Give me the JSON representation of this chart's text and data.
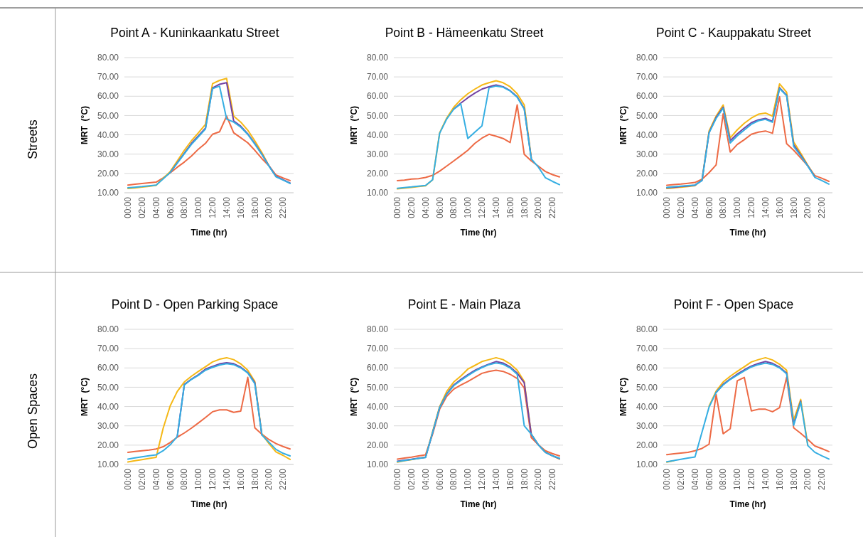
{
  "chart_data": [
    {
      "type": "line",
      "title": "Point A - Kuninkaankatu Street",
      "xlabel": "Time (hr)",
      "ylabel": "MRT  (°C)",
      "annotations": [
        "Streets"
      ],
      "x": [
        0,
        1,
        2,
        3,
        4,
        5,
        6,
        7,
        8,
        9,
        10,
        11,
        12,
        13,
        14,
        15,
        16,
        17,
        18,
        19,
        20,
        21,
        22,
        23
      ],
      "xlim": [
        -0.5,
        23.5
      ],
      "xticks": [
        {
          "value": 0,
          "label": "00:00"
        },
        {
          "value": 2,
          "label": "02:00"
        },
        {
          "value": 4,
          "label": "04:00"
        },
        {
          "value": 6,
          "label": "06:00"
        },
        {
          "value": 8,
          "label": "08:00"
        },
        {
          "value": 10,
          "label": "10:00"
        },
        {
          "value": 12,
          "label": "12:00"
        },
        {
          "value": 14,
          "label": "14:00"
        },
        {
          "value": 16,
          "label": "16:00"
        },
        {
          "value": 18,
          "label": "18:00"
        },
        {
          "value": 20,
          "label": "20:00"
        },
        {
          "value": 22,
          "label": "22:00"
        }
      ],
      "ylim": [
        10,
        80
      ],
      "yticks": [
        {
          "value": 10,
          "label": "10.00"
        },
        {
          "value": 20,
          "label": "20.00"
        },
        {
          "value": 30,
          "label": "30.00"
        },
        {
          "value": 40,
          "label": "40.00"
        },
        {
          "value": 50,
          "label": "50.00"
        },
        {
          "value": 60,
          "label": "60.00"
        },
        {
          "value": 70,
          "label": "70.00"
        },
        {
          "value": 80,
          "label": "80.00"
        }
      ],
      "grid": "y",
      "legend": false,
      "series": [
        {
          "color": "#ed6a45",
          "values": [
            14.0,
            14.4,
            14.8,
            15.2,
            15.5,
            17.7,
            20.3,
            23.2,
            25.9,
            29.0,
            32.6,
            35.6,
            40.3,
            41.6,
            49.7,
            41.1,
            38.5,
            35.9,
            32.0,
            27.7,
            24.0,
            19.2,
            17.7,
            16.3
          ]
        },
        {
          "color": "#f5b816",
          "values": [
            12.2,
            12.5,
            12.9,
            13.3,
            13.9,
            17.5,
            21.0,
            26.5,
            32.0,
            36.9,
            41.1,
            45.4,
            66.5,
            68.2,
            69.2,
            49.7,
            46.6,
            42.4,
            36.9,
            30.8,
            24.0,
            18.5,
            null,
            null
          ]
        },
        {
          "color": "#7342a3",
          "values": [
            null,
            null,
            null,
            null,
            null,
            null,
            20.5,
            25.5,
            30.5,
            35.5,
            39.5,
            43.5,
            64.3,
            66.2,
            67.0,
            47.2,
            44.5,
            40.5,
            35.5,
            30.0,
            24.0,
            18.5,
            16.8,
            15.0
          ]
        },
        {
          "color": "#35aee2",
          "values": [
            12.6,
            12.9,
            13.2,
            13.6,
            14.0,
            17.2,
            20.5,
            25.3,
            30.2,
            35.0,
            39.0,
            43.0,
            64.0,
            65.2,
            48.2,
            46.6,
            44.0,
            40.2,
            35.2,
            29.8,
            23.8,
            18.3,
            16.6,
            14.8
          ]
        }
      ]
    },
    {
      "type": "line",
      "title": "Point B - Hämeenkatu Street",
      "xlabel": "Time (hr)",
      "ylabel": "MRT  (°C)",
      "x": [
        0,
        1,
        2,
        3,
        4,
        5,
        6,
        7,
        8,
        9,
        10,
        11,
        12,
        13,
        14,
        15,
        16,
        17,
        18,
        19,
        20,
        21,
        22,
        23
      ],
      "xlim": [
        -0.5,
        23.5
      ],
      "xticks": [
        {
          "value": 0,
          "label": "00:00"
        },
        {
          "value": 2,
          "label": "02:00"
        },
        {
          "value": 4,
          "label": "04:00"
        },
        {
          "value": 6,
          "label": "06:00"
        },
        {
          "value": 8,
          "label": "08:00"
        },
        {
          "value": 10,
          "label": "10:00"
        },
        {
          "value": 12,
          "label": "12:00"
        },
        {
          "value": 14,
          "label": "14:00"
        },
        {
          "value": 16,
          "label": "16:00"
        },
        {
          "value": 18,
          "label": "18:00"
        },
        {
          "value": 20,
          "label": "20:00"
        },
        {
          "value": 22,
          "label": "22:00"
        }
      ],
      "ylim": [
        10,
        80
      ],
      "yticks": [
        {
          "value": 10,
          "label": "10.00"
        },
        {
          "value": 20,
          "label": "20.00"
        },
        {
          "value": 30,
          "label": "30.00"
        },
        {
          "value": 40,
          "label": "40.00"
        },
        {
          "value": 50,
          "label": "50.00"
        },
        {
          "value": 60,
          "label": "60.00"
        },
        {
          "value": 70,
          "label": "70.00"
        },
        {
          "value": 80,
          "label": "80.00"
        }
      ],
      "grid": "y",
      "legend": false,
      "series": [
        {
          "color": "#ed6a45",
          "values": [
            16.3,
            16.5,
            17.1,
            17.3,
            17.9,
            19.0,
            21.2,
            23.8,
            26.5,
            29.2,
            32.0,
            35.6,
            38.3,
            40.3,
            39.3,
            38.1,
            36.0,
            55.5,
            29.9,
            26.5,
            23.8,
            21.0,
            19.4,
            18.2
          ]
        },
        {
          "color": "#f5b816",
          "values": [
            12.0,
            12.4,
            12.8,
            13.2,
            13.6,
            16.7,
            41.1,
            48.7,
            54.3,
            58.2,
            61.3,
            63.7,
            65.8,
            67.0,
            68.0,
            67.0,
            64.9,
            61.3,
            55.5,
            28.3,
            null,
            null,
            null,
            null
          ]
        },
        {
          "color": "#7342a3",
          "values": [
            null,
            null,
            null,
            null,
            null,
            null,
            null,
            null,
            53.3,
            56.4,
            59.2,
            61.6,
            63.7,
            64.9,
            65.8,
            64.9,
            62.9,
            59.7,
            53.6,
            27.7,
            null,
            null,
            null,
            null
          ]
        },
        {
          "color": "#35aee2",
          "values": [
            12.3,
            12.7,
            13.0,
            13.4,
            13.8,
            16.7,
            40.8,
            48.2,
            53.3,
            56.0,
            38.1,
            41.4,
            44.6,
            64.3,
            65.3,
            64.7,
            62.7,
            59.5,
            53.3,
            27.5,
            23.3,
            17.8,
            15.9,
            14.2
          ]
        }
      ]
    },
    {
      "type": "line",
      "title": "Point C -  Kauppakatu Street",
      "xlabel": "Time (hr)",
      "ylabel": "MRT  (°C)",
      "x": [
        0,
        1,
        2,
        3,
        4,
        5,
        6,
        7,
        8,
        9,
        10,
        11,
        12,
        13,
        14,
        15,
        16,
        17,
        18,
        19,
        20,
        21,
        22,
        23
      ],
      "xlim": [
        -0.5,
        23.5
      ],
      "xticks": [
        {
          "value": 0,
          "label": "00:00"
        },
        {
          "value": 2,
          "label": "02:00"
        },
        {
          "value": 4,
          "label": "04:00"
        },
        {
          "value": 6,
          "label": "06:00"
        },
        {
          "value": 8,
          "label": "08:00"
        },
        {
          "value": 10,
          "label": "10:00"
        },
        {
          "value": 12,
          "label": "12:00"
        },
        {
          "value": 14,
          "label": "14:00"
        },
        {
          "value": 16,
          "label": "16:00"
        },
        {
          "value": 18,
          "label": "18:00"
        },
        {
          "value": 20,
          "label": "20:00"
        },
        {
          "value": 22,
          "label": "22:00"
        }
      ],
      "ylim": [
        10,
        80
      ],
      "yticks": [
        {
          "value": 10,
          "label": "10.00"
        },
        {
          "value": 20,
          "label": "20.00"
        },
        {
          "value": 30,
          "label": "30.00"
        },
        {
          "value": 40,
          "label": "40.00"
        },
        {
          "value": 50,
          "label": "50.00"
        },
        {
          "value": 60,
          "label": "60.00"
        },
        {
          "value": 70,
          "label": "70.00"
        },
        {
          "value": 80,
          "label": "80.00"
        }
      ],
      "grid": "y",
      "legend": false,
      "series": [
        {
          "color": "#ed6a45",
          "values": [
            13.9,
            14.2,
            14.5,
            14.9,
            15.3,
            17.0,
            20.4,
            24.4,
            50.9,
            31.1,
            35.0,
            37.5,
            40.3,
            41.4,
            42.0,
            40.8,
            59.7,
            35.4,
            32.0,
            28.0,
            24.0,
            18.9,
            17.5,
            15.9
          ]
        },
        {
          "color": "#f5b816",
          "values": [
            12.2,
            12.5,
            12.9,
            13.2,
            13.7,
            16.7,
            42.0,
            49.7,
            55.5,
            38.4,
            42.6,
            46.0,
            48.7,
            50.7,
            51.3,
            49.7,
            66.4,
            62.1,
            36.3,
            30.5,
            24.3,
            18.5,
            null,
            null
          ]
        },
        {
          "color": "#7342a3",
          "values": [
            12.6,
            12.9,
            13.2,
            13.5,
            13.9,
            16.5,
            41.2,
            49.0,
            54.3,
            37.0,
            40.5,
            43.5,
            46.3,
            47.8,
            48.5,
            47.0,
            64.4,
            60.5,
            34.8,
            29.5,
            24.0,
            18.3,
            null,
            null
          ]
        },
        {
          "color": "#35aee2",
          "values": [
            12.8,
            13.1,
            13.4,
            13.7,
            14.0,
            16.3,
            41.0,
            48.5,
            53.8,
            35.8,
            39.5,
            42.5,
            45.5,
            47.3,
            48.0,
            46.5,
            64.0,
            60.3,
            34.0,
            29.0,
            23.8,
            18.0,
            16.3,
            14.5
          ]
        }
      ]
    },
    {
      "type": "line",
      "title": "Point D - Open Parking Space",
      "xlabel": "Time (hr)",
      "ylabel": "MRT  (°C)",
      "annotations": [
        "Open Spaces"
      ],
      "x": [
        0,
        1,
        2,
        3,
        4,
        5,
        6,
        7,
        8,
        9,
        10,
        11,
        12,
        13,
        14,
        15,
        16,
        17,
        18,
        19,
        20,
        21,
        22,
        23
      ],
      "xlim": [
        -0.5,
        23.5
      ],
      "xticks": [
        {
          "value": 0,
          "label": "00:00"
        },
        {
          "value": 2,
          "label": "02:00"
        },
        {
          "value": 4,
          "label": "04:00"
        },
        {
          "value": 6,
          "label": "06:00"
        },
        {
          "value": 8,
          "label": "08:00"
        },
        {
          "value": 10,
          "label": "10:00"
        },
        {
          "value": 12,
          "label": "12:00"
        },
        {
          "value": 14,
          "label": "14:00"
        },
        {
          "value": 16,
          "label": "16:00"
        },
        {
          "value": 18,
          "label": "18:00"
        },
        {
          "value": 20,
          "label": "20:00"
        },
        {
          "value": 22,
          "label": "22:00"
        }
      ],
      "ylim": [
        10,
        80
      ],
      "yticks": [
        {
          "value": 10,
          "label": "10.00"
        },
        {
          "value": 20,
          "label": "20.00"
        },
        {
          "value": 30,
          "label": "30.00"
        },
        {
          "value": 40,
          "label": "40.00"
        },
        {
          "value": 50,
          "label": "50.00"
        },
        {
          "value": 60,
          "label": "60.00"
        },
        {
          "value": 70,
          "label": "70.00"
        },
        {
          "value": 80,
          "label": "80.00"
        }
      ],
      "grid": "y",
      "legend": false,
      "series": [
        {
          "color": "#ed6a45",
          "values": [
            16.3,
            16.7,
            17.1,
            17.5,
            18.0,
            19.2,
            21.4,
            24.1,
            26.3,
            28.8,
            31.5,
            34.3,
            37.3,
            38.3,
            38.3,
            37.0,
            37.6,
            55.1,
            29.0,
            25.7,
            22.9,
            20.8,
            19.3,
            18.0
          ]
        },
        {
          "color": "#f5b816",
          "values": [
            11.3,
            11.9,
            12.5,
            13.1,
            13.7,
            28.8,
            40.4,
            47.8,
            52.7,
            55.7,
            58.2,
            60.6,
            63.1,
            64.5,
            65.3,
            64.3,
            62.1,
            58.8,
            53.0,
            25.7,
            20.8,
            16.5,
            14.7,
            12.6
          ]
        },
        {
          "color": "#7342a3",
          "values": [
            null,
            null,
            null,
            null,
            null,
            null,
            null,
            24.5,
            51.4,
            54.2,
            56.5,
            59.4,
            60.8,
            62.1,
            62.7,
            62.2,
            60.4,
            57.6,
            52.3,
            25.3,
            null,
            null,
            null,
            null
          ]
        },
        {
          "color": "#35aee2",
          "values": [
            12.8,
            13.4,
            14.0,
            14.5,
            15.0,
            17.1,
            20.2,
            24.5,
            51.2,
            54.0,
            56.2,
            58.8,
            60.3,
            61.5,
            62.2,
            61.7,
            60.0,
            57.4,
            51.8,
            25.3,
            21.5,
            17.8,
            15.8,
            14.4
          ]
        }
      ]
    },
    {
      "type": "line",
      "title": "Point E - Main Plaza",
      "xlabel": "Time (hr)",
      "ylabel": "MRT  (°C)",
      "x": [
        0,
        1,
        2,
        3,
        4,
        5,
        6,
        7,
        8,
        9,
        10,
        11,
        12,
        13,
        14,
        15,
        16,
        17,
        18,
        19,
        20,
        21,
        22,
        23
      ],
      "xlim": [
        -0.5,
        23.5
      ],
      "xticks": [
        {
          "value": 0,
          "label": "00:00"
        },
        {
          "value": 2,
          "label": "02:00"
        },
        {
          "value": 4,
          "label": "04:00"
        },
        {
          "value": 6,
          "label": "06:00"
        },
        {
          "value": 8,
          "label": "08:00"
        },
        {
          "value": 10,
          "label": "10:00"
        },
        {
          "value": 12,
          "label": "12:00"
        },
        {
          "value": 14,
          "label": "14:00"
        },
        {
          "value": 16,
          "label": "16:00"
        },
        {
          "value": 18,
          "label": "18:00"
        },
        {
          "value": 20,
          "label": "20:00"
        },
        {
          "value": 22,
          "label": "22:00"
        }
      ],
      "ylim": [
        10,
        80
      ],
      "yticks": [
        {
          "value": 10,
          "label": "10.00"
        },
        {
          "value": 20,
          "label": "20.00"
        },
        {
          "value": 30,
          "label": "30.00"
        },
        {
          "value": 40,
          "label": "40.00"
        },
        {
          "value": 50,
          "label": "50.00"
        },
        {
          "value": 60,
          "label": "60.00"
        },
        {
          "value": 70,
          "label": "70.00"
        },
        {
          "value": 80,
          "label": "80.00"
        }
      ],
      "grid": "y",
      "legend": false,
      "series": [
        {
          "color": "#ed6a45",
          "values": [
            12.8,
            13.3,
            13.8,
            14.4,
            15.0,
            25.7,
            38.6,
            45.3,
            49.0,
            51.1,
            53.0,
            55.1,
            57.2,
            58.2,
            58.8,
            58.2,
            56.7,
            54.5,
            49.6,
            23.9,
            20.2,
            17.1,
            15.6,
            14.4
          ]
        },
        {
          "color": "#f5b816",
          "values": [
            11.2,
            11.9,
            12.5,
            13.1,
            13.8,
            27.0,
            40.0,
            47.8,
            52.7,
            55.8,
            59.4,
            61.3,
            63.3,
            64.3,
            65.3,
            64.3,
            62.1,
            58.8,
            53.0,
            25.7,
            20.2,
            16.4,
            14.5,
            12.8
          ]
        },
        {
          "color": "#7342a3",
          "values": [
            11.7,
            12.2,
            12.7,
            13.2,
            13.7,
            26.5,
            39.5,
            46.5,
            51.2,
            54.0,
            56.5,
            58.8,
            60.5,
            62.0,
            63.3,
            62.5,
            60.5,
            57.3,
            52.3,
            25.5,
            20.2,
            16.3,
            14.5,
            13.0
          ]
        },
        {
          "color": "#35aee2",
          "values": [
            11.5,
            12.0,
            12.6,
            13.1,
            13.6,
            26.5,
            39.5,
            46.3,
            50.8,
            53.5,
            56.0,
            58.3,
            60.2,
            61.7,
            62.6,
            61.9,
            60.0,
            56.7,
            30.0,
            25.7,
            20.2,
            16.2,
            14.5,
            13.2
          ]
        }
      ]
    },
    {
      "type": "line",
      "title": "Point F - Open Space",
      "xlabel": "Time (hr)",
      "ylabel": "MRT  (°C)",
      "x": [
        0,
        1,
        2,
        3,
        4,
        5,
        6,
        7,
        8,
        9,
        10,
        11,
        12,
        13,
        14,
        15,
        16,
        17,
        18,
        19,
        20,
        21,
        22,
        23
      ],
      "xlim": [
        -0.5,
        23.5
      ],
      "xticks": [
        {
          "value": 0,
          "label": "00:00"
        },
        {
          "value": 2,
          "label": "02:00"
        },
        {
          "value": 4,
          "label": "04:00"
        },
        {
          "value": 6,
          "label": "06:00"
        },
        {
          "value": 8,
          "label": "08:00"
        },
        {
          "value": 10,
          "label": "10:00"
        },
        {
          "value": 12,
          "label": "12:00"
        },
        {
          "value": 14,
          "label": "14:00"
        },
        {
          "value": 16,
          "label": "16:00"
        },
        {
          "value": 18,
          "label": "18:00"
        },
        {
          "value": 20,
          "label": "20:00"
        },
        {
          "value": 22,
          "label": "22:00"
        }
      ],
      "ylim": [
        10,
        80
      ],
      "yticks": [
        {
          "value": 10,
          "label": "10.00"
        },
        {
          "value": 20,
          "label": "20.00"
        },
        {
          "value": 30,
          "label": "30.00"
        },
        {
          "value": 40,
          "label": "40.00"
        },
        {
          "value": 50,
          "label": "50.00"
        },
        {
          "value": 60,
          "label": "60.00"
        },
        {
          "value": 70,
          "label": "70.00"
        },
        {
          "value": 80,
          "label": "80.00"
        }
      ],
      "grid": "y",
      "legend": false,
      "series": [
        {
          "color": "#ed6a45",
          "values": [
            15.1,
            15.5,
            15.9,
            16.3,
            17.1,
            18.3,
            20.5,
            46.2,
            25.9,
            28.5,
            53.3,
            55.1,
            37.7,
            38.6,
            38.6,
            37.3,
            39.4,
            55.1,
            29.0,
            26.1,
            23.0,
            19.6,
            18.2,
            16.7
          ]
        },
        {
          "color": "#f5b816",
          "values": [
            11.2,
            11.9,
            null,
            null,
            null,
            null,
            40.2,
            48.0,
            52.7,
            55.7,
            58.2,
            60.6,
            63.1,
            64.3,
            65.3,
            64.1,
            61.9,
            58.8,
            33.0,
            43.7,
            20.2,
            null,
            null,
            null
          ]
        },
        {
          "color": "#7342a3",
          "values": [
            null,
            null,
            null,
            null,
            null,
            null,
            null,
            47.3,
            51.5,
            54.3,
            56.8,
            59.0,
            61.0,
            62.3,
            63.3,
            62.4,
            60.4,
            57.3,
            30.8,
            42.8,
            null,
            null,
            null,
            null
          ]
        },
        {
          "color": "#35aee2",
          "values": [
            11.4,
            12.0,
            12.7,
            13.3,
            13.9,
            26.8,
            39.7,
            47.3,
            51.2,
            54.0,
            56.3,
            58.5,
            60.5,
            61.7,
            62.5,
            61.8,
            60.0,
            57.0,
            30.3,
            42.3,
            19.8,
            16.3,
            14.5,
            12.8
          ]
        }
      ]
    }
  ]
}
